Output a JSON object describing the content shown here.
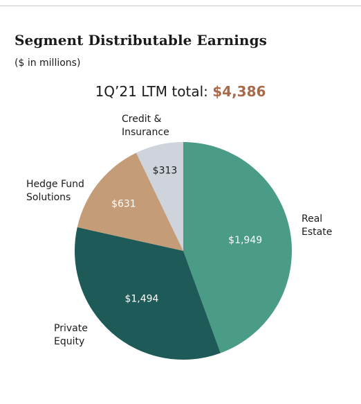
{
  "chart_data": {
    "type": "pie",
    "title": "Segment Distributable Earnings",
    "subtitle": "($ in millions)",
    "total_prefix": "1Q’21 LTM total: ",
    "total_value": "$4,386",
    "slices": [
      {
        "name": "Real Estate",
        "name_lines": [
          "Real",
          "Estate"
        ],
        "value": 1949,
        "label": "$1,949",
        "color": "#4a9c86",
        "text_color": "#ffffff"
      },
      {
        "name": "Private Equity",
        "name_lines": [
          "Private",
          "Equity"
        ],
        "value": 1494,
        "label": "$1,494",
        "color": "#1e5b58",
        "text_color": "#ffffff"
      },
      {
        "name": "Hedge Fund Solutions",
        "name_lines": [
          "Hedge Fund",
          "Solutions"
        ],
        "value": 631,
        "label": "$631",
        "color": "#c49c78",
        "text_color": "#ffffff"
      },
      {
        "name": "Credit & Insurance",
        "name_lines": [
          "Credit &",
          "Insurance"
        ],
        "value": 313,
        "label": "$313",
        "color": "#cfd3dc",
        "text_color": "#1a1a1a"
      }
    ],
    "start": "12 o'clock",
    "direction": "clockwise"
  }
}
